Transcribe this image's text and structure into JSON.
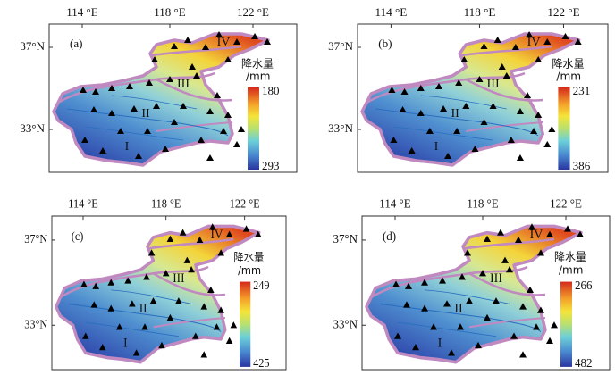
{
  "panels": [
    {
      "label": "(a)",
      "lon_labels": [
        "114 °E",
        "118 °E",
        "122 °E"
      ],
      "lat_labels": [
        "37°N",
        "33°N"
      ],
      "regions": [
        "I",
        "II",
        "III",
        "IV"
      ],
      "legend_title": "降水量",
      "legend_unit": "/mm",
      "legend_top": 180,
      "legend_bottom": 293
    },
    {
      "label": "(b)",
      "lon_labels": [
        "114 °E",
        "118 °E",
        "122 °E"
      ],
      "lat_labels": [
        "37°N",
        "33°N"
      ],
      "regions": [
        "I",
        "II",
        "III",
        "IV"
      ],
      "legend_title": "降水量",
      "legend_unit": "/mm",
      "legend_top": 231,
      "legend_bottom": 386
    },
    {
      "label": "(c)",
      "lon_labels": [
        "114 °E",
        "118 °E",
        "122 °E"
      ],
      "lat_labels": [
        "37°N",
        "33°N"
      ],
      "regions": [
        "I",
        "II",
        "III",
        "IV"
      ],
      "legend_title": "降水量",
      "legend_unit": "/mm",
      "legend_top": 249,
      "legend_bottom": 425
    },
    {
      "label": "(d)",
      "lon_labels": [
        "114 °E",
        "118 °E",
        "122 °E"
      ],
      "lat_labels": [
        "37°N",
        "33°N"
      ],
      "regions": [
        "I",
        "II",
        "III",
        "IV"
      ],
      "legend_title": "降水量",
      "legend_unit": "/mm",
      "legend_top": 266,
      "legend_bottom": 482
    }
  ]
}
